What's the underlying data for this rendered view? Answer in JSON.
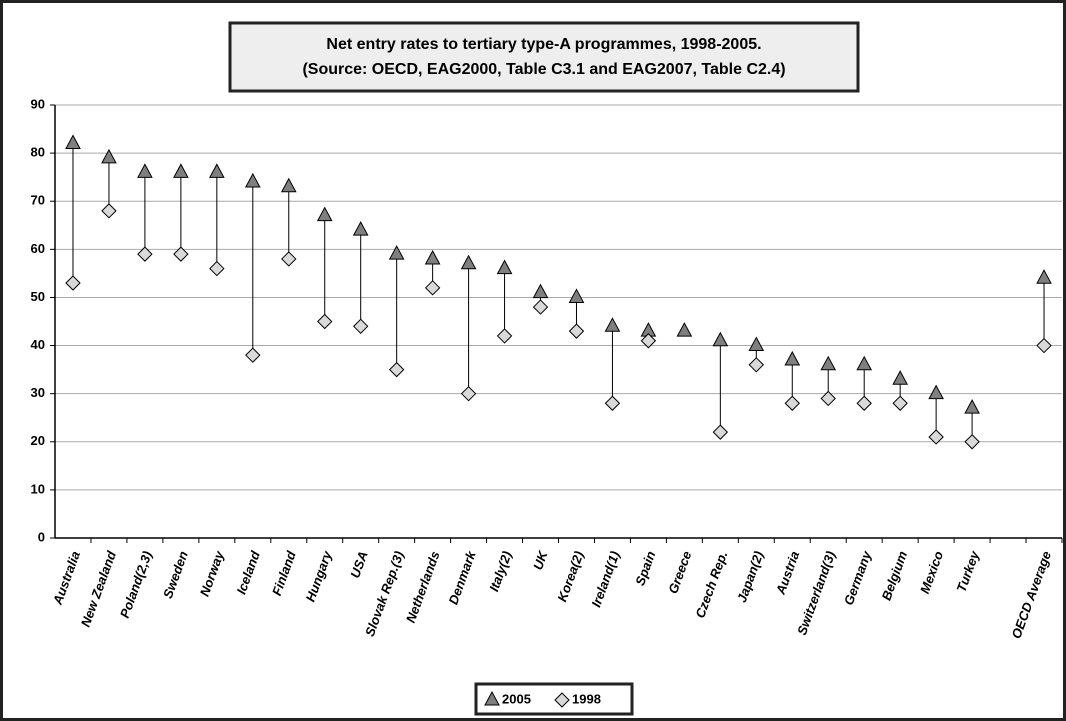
{
  "chart_data": {
    "type": "dropline",
    "title": [
      "Net entry rates to tertiary type-A programmes, 1998-2005.",
      "(Source: OECD, EAG2000, Table C3.1 and EAG2007, Table C2.4)"
    ],
    "categories": [
      "Australia",
      "New Zealand",
      "Poland(2,3)",
      "Sweden",
      "Norway",
      "Iceland",
      "Finland",
      "Hungary",
      "USA",
      "Slovak Rep.(3)",
      "Netherlands",
      "Denmark",
      "Italy(2)",
      "UK",
      "Korea(2)",
      "Ireland(1)",
      "Spain",
      "Greece",
      "Czech Rep.",
      "Japan(2)",
      "Austria",
      "Switzerland(3)",
      "Germany",
      "Belgium",
      "Mexico",
      "Turkey",
      null,
      "OECD Average"
    ],
    "series": [
      {
        "name": "2005",
        "color": "#7f7f7f",
        "marker": "triangle",
        "values": [
          82,
          79,
          76,
          76,
          76,
          74,
          73,
          67,
          64,
          59,
          58,
          57,
          56,
          51,
          50,
          44,
          43,
          43,
          41,
          40,
          37,
          36,
          36,
          33,
          30,
          27,
          null,
          54
        ]
      },
      {
        "name": "1998",
        "color": "#d9d9d9",
        "marker": "diamond",
        "values": [
          53,
          68,
          59,
          59,
          56,
          38,
          58,
          45,
          44,
          35,
          52,
          30,
          42,
          48,
          43,
          28,
          41,
          null,
          22,
          36,
          28,
          29,
          28,
          28,
          21,
          20,
          null,
          40
        ]
      }
    ],
    "ylim": [
      0,
      90
    ],
    "yticks": [
      0,
      10,
      20,
      30,
      40,
      50,
      60,
      70,
      80,
      90
    ],
    "grid": true,
    "legend": "bottom"
  }
}
